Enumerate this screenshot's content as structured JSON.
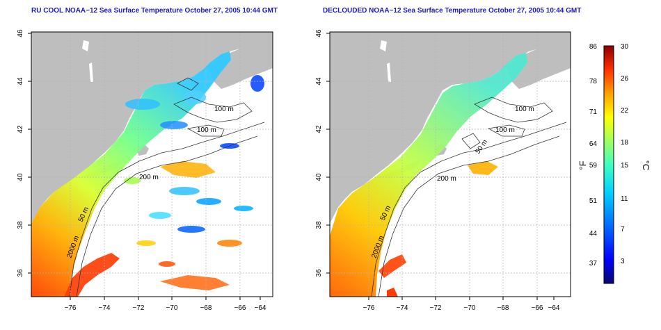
{
  "panels": [
    {
      "title": "RU COOL NOAA−12 Sea Surface Temperature October 27, 2005 10:44 GMT",
      "contours": [
        "100 m",
        "100 m",
        "200 m",
        "50 m",
        "2000 m"
      ]
    },
    {
      "title": "DECLOUDED NOAA−12 Sea Surface Temperature October 27, 2005 10:44 GMT",
      "contours": [
        "100 m",
        "100 m",
        "50 m",
        "200 m",
        "50 m",
        "2000 m"
      ]
    }
  ],
  "axes": {
    "x_ticks": [
      "−76",
      "−74",
      "−72",
      "−70",
      "−68",
      "−66",
      "−64"
    ],
    "y_ticks": [
      "46",
      "44",
      "42",
      "40",
      "38",
      "36"
    ]
  },
  "colorbar": {
    "fahrenheit_label": "°F",
    "celsius_label": "°C",
    "fahrenheit_ticks": [
      "86",
      "78",
      "71",
      "64",
      "59",
      "51",
      "44",
      "37"
    ],
    "celsius_ticks": [
      "30",
      "26",
      "22",
      "18",
      "15",
      "11",
      "7",
      "3"
    ],
    "colors": [
      "#08086e",
      "#0000ff",
      "#0070ff",
      "#00d0ff",
      "#40ffc0",
      "#a0ff60",
      "#ffff00",
      "#ffa000",
      "#ff3000",
      "#8b0000"
    ]
  },
  "colors": {
    "land": "#bebebe",
    "title": "#1a1ac8",
    "grid": "#b4b4b4"
  }
}
